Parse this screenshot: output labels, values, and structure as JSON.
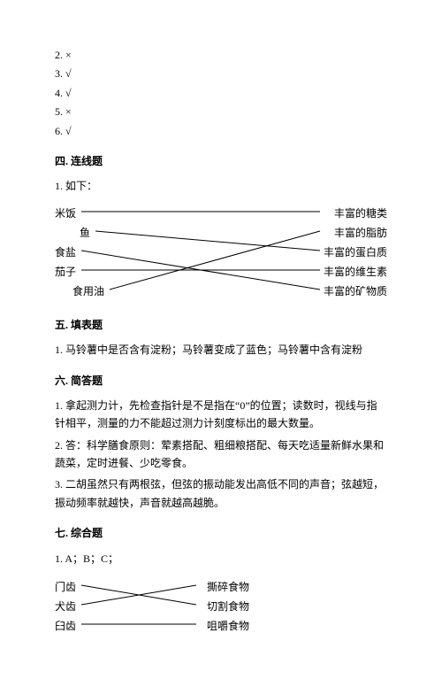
{
  "tf": [
    {
      "n": "2.",
      "mark": "×"
    },
    {
      "n": "3.",
      "mark": "√"
    },
    {
      "n": "4.",
      "mark": "√"
    },
    {
      "n": "5.",
      "mark": "×"
    },
    {
      "n": "6.",
      "mark": "√"
    }
  ],
  "sec4": {
    "title": "四. 连线题",
    "q": "1. 如下："
  },
  "match1": {
    "left": [
      "米饭",
      "鱼",
      "食盐",
      "茄子",
      "食用油"
    ],
    "right": [
      "丰富的糖类",
      "丰富的脂肪",
      "丰富的蛋白质",
      "丰富的维生素",
      "丰富的矿物质"
    ],
    "left_indent": [
      0,
      28,
      0,
      0,
      20
    ],
    "pairs": [
      [
        0,
        0
      ],
      [
        1,
        2
      ],
      [
        2,
        4
      ],
      [
        3,
        3
      ],
      [
        4,
        1
      ]
    ]
  },
  "sec5": {
    "title": "五. 填表题",
    "a": "1. 马铃薯中是否含有淀粉；马铃薯变成了蓝色；马铃薯中含有淀粉"
  },
  "sec6": {
    "title": "六. 简答题",
    "a1": "1. 拿起测力计，先检查指针是不是指在“0”的位置；读数时，视线与指针相平，测量的力不能超过测力计刻度标出的最大数量。",
    "a2": "2. 答：科学膳食原则：荤素搭配、粗细粮搭配、每天吃适量新鲜水果和蔬菜，定时进餐、少吃零食。",
    "a3": "3. 二胡虽然只有两根弦，但弦的振动能发出高低不同的声音；弦越短，振动频率就越快，声音就越高越脆。"
  },
  "sec7": {
    "title": "七. 综合题",
    "a": "1. A；B；C；"
  },
  "match2": {
    "left": [
      "门齿",
      "犬齿",
      "臼齿"
    ],
    "right": [
      "撕碎食物",
      "切割食物",
      "咀嚼食物"
    ],
    "pairs": [
      [
        0,
        1
      ],
      [
        1,
        0
      ],
      [
        2,
        2
      ]
    ]
  },
  "line_color": "#000000"
}
